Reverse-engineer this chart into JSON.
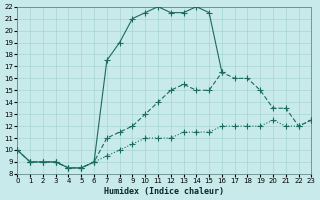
{
  "bg_color": "#c8eaea",
  "grid_color": "#a8d4d4",
  "line_color": "#1a6b5a",
  "xlabel": "Humidex (Indice chaleur)",
  "xlim": [
    0,
    23
  ],
  "ylim": [
    8,
    22
  ],
  "xticks": [
    0,
    1,
    2,
    3,
    4,
    5,
    6,
    7,
    8,
    9,
    10,
    11,
    12,
    13,
    14,
    15,
    16,
    17,
    18,
    19,
    20,
    21,
    22,
    23
  ],
  "yticks": [
    8,
    9,
    10,
    11,
    12,
    13,
    14,
    15,
    16,
    17,
    18,
    19,
    20,
    21,
    22
  ],
  "line_top_x": [
    0,
    1,
    2,
    3,
    4,
    5,
    6,
    7,
    8,
    9,
    10,
    11,
    12,
    13,
    14,
    15,
    16
  ],
  "line_top_y": [
    10,
    9,
    9,
    9,
    8.5,
    8.5,
    9,
    17.5,
    19,
    21,
    21.5,
    22,
    21.5,
    21.5,
    22,
    21.5,
    16.5
  ],
  "line_mid_x": [
    0,
    1,
    2,
    3,
    4,
    5,
    6,
    7,
    8,
    9,
    10,
    11,
    12,
    13,
    14,
    15,
    16,
    17,
    18,
    19,
    20,
    21,
    22,
    23
  ],
  "line_mid_y": [
    10,
    9,
    9,
    9,
    8.5,
    8.5,
    9,
    11,
    11.5,
    12,
    13,
    14,
    15,
    15.5,
    15,
    15,
    16.5,
    16,
    16,
    15,
    13.5,
    13.5,
    12,
    12.5
  ],
  "line_bot_x": [
    0,
    1,
    2,
    3,
    4,
    5,
    6,
    7,
    8,
    9,
    10,
    11,
    12,
    13,
    14,
    15,
    16,
    17,
    18,
    19,
    20,
    21,
    22,
    23
  ],
  "line_bot_y": [
    10,
    9,
    9,
    9,
    8.5,
    8.5,
    9,
    9.5,
    10,
    10.5,
    11,
    11,
    11,
    11.5,
    11.5,
    11.5,
    12,
    12,
    12,
    12,
    12.5,
    12,
    12,
    12.5
  ]
}
